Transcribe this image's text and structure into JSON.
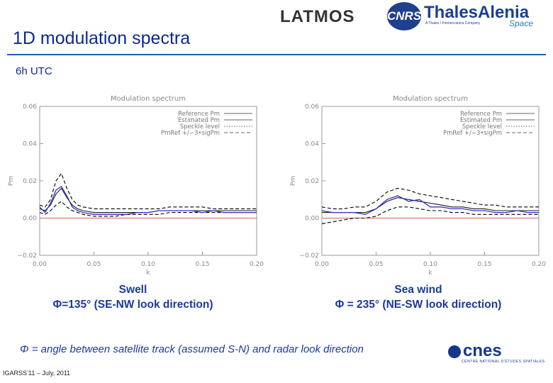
{
  "header": {
    "title": "1D modulation spectra",
    "subtitle": "6h UTC",
    "logos": {
      "latmos": "LATMOS",
      "cnrs": "CNRS",
      "thales": "ThalesAlenia",
      "thales_sub": "Space",
      "thales_tag": "A Thales / Finmeccanica Company",
      "cnes": "cnes",
      "cnes_sub": "CENTRE NATIONAL D'ÉTUDES SPATIALES"
    }
  },
  "captions": {
    "left": [
      "Swell",
      "Φ=135° (SE-NW look direction)"
    ],
    "right": [
      "Sea wind",
      "Φ = 235° (NE-SW look direction)"
    ]
  },
  "note": "Φ = angle between satellite track (assumed S-N) and radar look direction",
  "footer": "IGARSS’11 – July, 2011",
  "colors": {
    "reference": "#1a1a1a",
    "estimated": "#3333cc",
    "speckle": "#e06060",
    "bounds": "#000000",
    "axes": "#9a9a9a",
    "title_blue": "#0b2a8c"
  },
  "chart_data": [
    {
      "type": "line",
      "title": "Modulation spectrum",
      "xlabel": "k",
      "ylabel": "Pm",
      "xlim": [
        0.0,
        0.2
      ],
      "ylim": [
        -0.02,
        0.06
      ],
      "xticks": [
        "0.00",
        "0.05",
        "0.10",
        "0.15",
        "0.20"
      ],
      "yticks": [
        "−0.02",
        "0.00",
        "0.02",
        "0.04",
        "0.06"
      ],
      "legend_position": "top-right",
      "grid": false,
      "x": [
        0.0,
        0.005,
        0.01,
        0.015,
        0.02,
        0.025,
        0.03,
        0.035,
        0.04,
        0.05,
        0.06,
        0.07,
        0.08,
        0.09,
        0.1,
        0.11,
        0.12,
        0.13,
        0.14,
        0.15,
        0.16,
        0.17,
        0.18,
        0.19,
        0.2
      ],
      "series": [
        {
          "name": "Reference Pm",
          "style": "solid",
          "values": [
            0.005,
            0.004,
            0.007,
            0.013,
            0.016,
            0.011,
            0.007,
            0.005,
            0.004,
            0.003,
            0.003,
            0.003,
            0.003,
            0.003,
            0.003,
            0.004,
            0.004,
            0.004,
            0.004,
            0.004,
            0.004,
            0.004,
            0.004,
            0.004,
            0.004
          ]
        },
        {
          "name": "Estimated Pm",
          "style": "solid",
          "values": [
            0.006,
            0.003,
            0.008,
            0.015,
            0.017,
            0.012,
            0.006,
            0.004,
            0.003,
            0.002,
            0.002,
            0.002,
            0.002,
            0.003,
            0.003,
            0.004,
            0.004,
            0.004,
            0.004,
            0.003,
            0.004,
            0.003,
            0.003,
            0.003,
            0.003
          ]
        },
        {
          "name": "Speckle level",
          "style": "dotted",
          "values": [
            0.0,
            0.0,
            0.0,
            0.0,
            0.0,
            0.0,
            0.0,
            0.0,
            0.0,
            0.0,
            0.0,
            0.0,
            0.0,
            0.0,
            0.0,
            0.0,
            0.0,
            0.0,
            0.0,
            0.0,
            0.0,
            0.0,
            0.0,
            0.0,
            0.0
          ]
        },
        {
          "name": "PmRef +/−3•sigPm",
          "style": "dashed",
          "values": [
            0.007,
            0.006,
            0.01,
            0.02,
            0.024,
            0.016,
            0.01,
            0.007,
            0.006,
            0.005,
            0.005,
            0.005,
            0.005,
            0.005,
            0.005,
            0.005,
            0.006,
            0.006,
            0.006,
            0.006,
            0.005,
            0.005,
            0.005,
            0.005,
            0.005
          ]
        },
        {
          "name": "",
          "style": "dashed",
          "values": [
            0.003,
            0.002,
            0.004,
            0.007,
            0.009,
            0.006,
            0.004,
            0.003,
            0.002,
            0.001,
            0.001,
            0.001,
            0.002,
            0.002,
            0.002,
            0.002,
            0.003,
            0.003,
            0.003,
            0.003,
            0.003,
            0.003,
            0.003,
            0.003,
            0.003
          ]
        }
      ]
    },
    {
      "type": "line",
      "title": "Modulation spectrum",
      "xlabel": "k",
      "ylabel": "Pm",
      "xlim": [
        0.0,
        0.2
      ],
      "ylim": [
        -0.02,
        0.06
      ],
      "xticks": [
        "0.00",
        "0.05",
        "0.10",
        "0.15",
        "0.20"
      ],
      "yticks": [
        "−0.02",
        "0.00",
        "0.02",
        "0.04",
        "0.06"
      ],
      "legend_position": "top-right",
      "grid": false,
      "x": [
        0.0,
        0.01,
        0.02,
        0.03,
        0.04,
        0.05,
        0.06,
        0.07,
        0.08,
        0.09,
        0.1,
        0.11,
        0.12,
        0.13,
        0.14,
        0.15,
        0.16,
        0.17,
        0.18,
        0.19,
        0.2
      ],
      "series": [
        {
          "name": "Reference Pm",
          "style": "solid",
          "values": [
            0.003,
            0.003,
            0.003,
            0.003,
            0.003,
            0.005,
            0.009,
            0.011,
            0.01,
            0.009,
            0.008,
            0.007,
            0.006,
            0.006,
            0.005,
            0.005,
            0.004,
            0.004,
            0.004,
            0.004,
            0.004
          ]
        },
        {
          "name": "Estimated Pm",
          "style": "solid",
          "values": [
            0.004,
            0.003,
            0.003,
            0.003,
            0.002,
            0.005,
            0.01,
            0.012,
            0.009,
            0.01,
            0.006,
            0.006,
            0.005,
            0.005,
            0.004,
            0.004,
            0.003,
            0.003,
            0.004,
            0.003,
            0.003
          ]
        },
        {
          "name": "Speckle level",
          "style": "dotted",
          "values": [
            0.0,
            0.0,
            0.0,
            0.0,
            0.0,
            0.0,
            0.0,
            0.0,
            0.0,
            0.0,
            0.0,
            0.0,
            0.0,
            0.0,
            0.0,
            0.0,
            0.0,
            0.0,
            0.0,
            0.0,
            0.0
          ]
        },
        {
          "name": "PmRef +/−3•sigPm",
          "style": "dashed",
          "values": [
            0.006,
            0.005,
            0.005,
            0.006,
            0.006,
            0.009,
            0.014,
            0.016,
            0.015,
            0.013,
            0.012,
            0.011,
            0.01,
            0.009,
            0.008,
            0.007,
            0.007,
            0.006,
            0.006,
            0.006,
            0.006
          ]
        },
        {
          "name": "",
          "style": "dashed",
          "values": [
            -0.003,
            -0.002,
            -0.001,
            0.0,
            0.0,
            0.001,
            0.004,
            0.006,
            0.006,
            0.005,
            0.004,
            0.004,
            0.003,
            0.003,
            0.002,
            0.002,
            0.002,
            0.002,
            0.002,
            0.002,
            0.002
          ]
        }
      ]
    }
  ]
}
